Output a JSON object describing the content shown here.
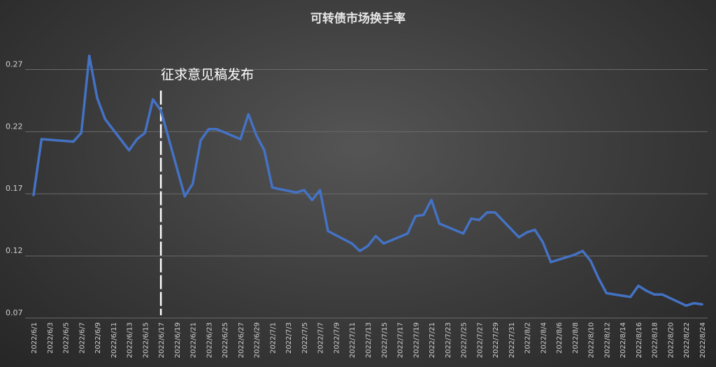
{
  "chart_data": {
    "type": "line",
    "title": "可转债市场换手率",
    "xlabel": "",
    "ylabel": "",
    "ylim": [
      0.07,
      0.295
    ],
    "yticks": [
      0.07,
      0.12,
      0.17,
      0.22,
      0.27
    ],
    "ytick_labels": [
      "0.07",
      "0.12",
      "0.17",
      "0.22",
      "0.27"
    ],
    "grid": true,
    "legend": "none",
    "line_color": "#4472c4",
    "x": [
      "2022/6/1",
      "2022/6/2",
      "2022/6/6",
      "2022/6/7",
      "2022/6/8",
      "2022/6/9",
      "2022/6/10",
      "2022/6/13",
      "2022/6/14",
      "2022/6/15",
      "2022/6/16",
      "2022/6/17",
      "2022/6/20",
      "2022/6/21",
      "2022/6/22",
      "2022/6/23",
      "2022/6/24",
      "2022/6/27",
      "2022/6/28",
      "2022/6/29",
      "2022/6/30",
      "2022/7/1",
      "2022/7/4",
      "2022/7/5",
      "2022/7/6",
      "2022/7/7",
      "2022/7/8",
      "2022/7/11",
      "2022/7/12",
      "2022/7/13",
      "2022/7/14",
      "2022/7/15",
      "2022/7/18",
      "2022/7/19",
      "2022/7/20",
      "2022/7/21",
      "2022/7/22",
      "2022/7/25",
      "2022/7/26",
      "2022/7/27",
      "2022/7/28",
      "2022/7/29",
      "2022/8/1",
      "2022/8/2",
      "2022/8/3",
      "2022/8/4",
      "2022/8/5",
      "2022/8/8",
      "2022/8/9",
      "2022/8/10",
      "2022/8/11",
      "2022/8/12",
      "2022/8/15",
      "2022/8/16",
      "2022/8/17",
      "2022/8/18",
      "2022/8/19",
      "2022/8/22",
      "2022/8/23",
      "2022/8/24"
    ],
    "values": [
      0.169,
      0.214,
      0.212,
      0.219,
      0.281,
      0.247,
      0.23,
      0.205,
      0.214,
      0.219,
      0.246,
      0.237,
      0.168,
      0.178,
      0.213,
      0.222,
      0.222,
      0.214,
      0.234,
      0.217,
      0.205,
      0.175,
      0.171,
      0.173,
      0.165,
      0.173,
      0.14,
      0.13,
      0.124,
      0.128,
      0.136,
      0.13,
      0.138,
      0.152,
      0.153,
      0.165,
      0.146,
      0.138,
      0.15,
      0.149,
      0.155,
      0.155,
      0.135,
      0.139,
      0.141,
      0.131,
      0.115,
      0.121,
      0.124,
      0.116,
      0.102,
      0.09,
      0.087,
      0.096,
      0.092,
      0.089,
      0.089,
      0.08,
      0.082,
      0.081
    ],
    "x_tick_labels": [
      "2022/6/1",
      "2022/6/3",
      "2022/6/5",
      "2022/6/7",
      "2022/6/9",
      "2022/6/11",
      "2022/6/13",
      "2022/6/15",
      "2022/6/17",
      "2022/6/19",
      "2022/6/21",
      "2022/6/23",
      "2022/6/25",
      "2022/6/27",
      "2022/6/29",
      "2022/7/1",
      "2022/7/3",
      "2022/7/5",
      "2022/7/7",
      "2022/7/9",
      "2022/7/11",
      "2022/7/13",
      "2022/7/15",
      "2022/7/17",
      "2022/7/19",
      "2022/7/21",
      "2022/7/23",
      "2022/7/25",
      "2022/7/27",
      "2022/7/29",
      "2022/7/31",
      "2022/8/2",
      "2022/8/4",
      "2022/8/6",
      "2022/8/8",
      "2022/8/10",
      "2022/8/12",
      "2022/8/14",
      "2022/8/16",
      "2022/8/18",
      "2022/8/20",
      "2022/8/22",
      "2022/8/24"
    ],
    "annotation": {
      "text": "征求意见稿发布",
      "x": "2022/6/17"
    }
  }
}
